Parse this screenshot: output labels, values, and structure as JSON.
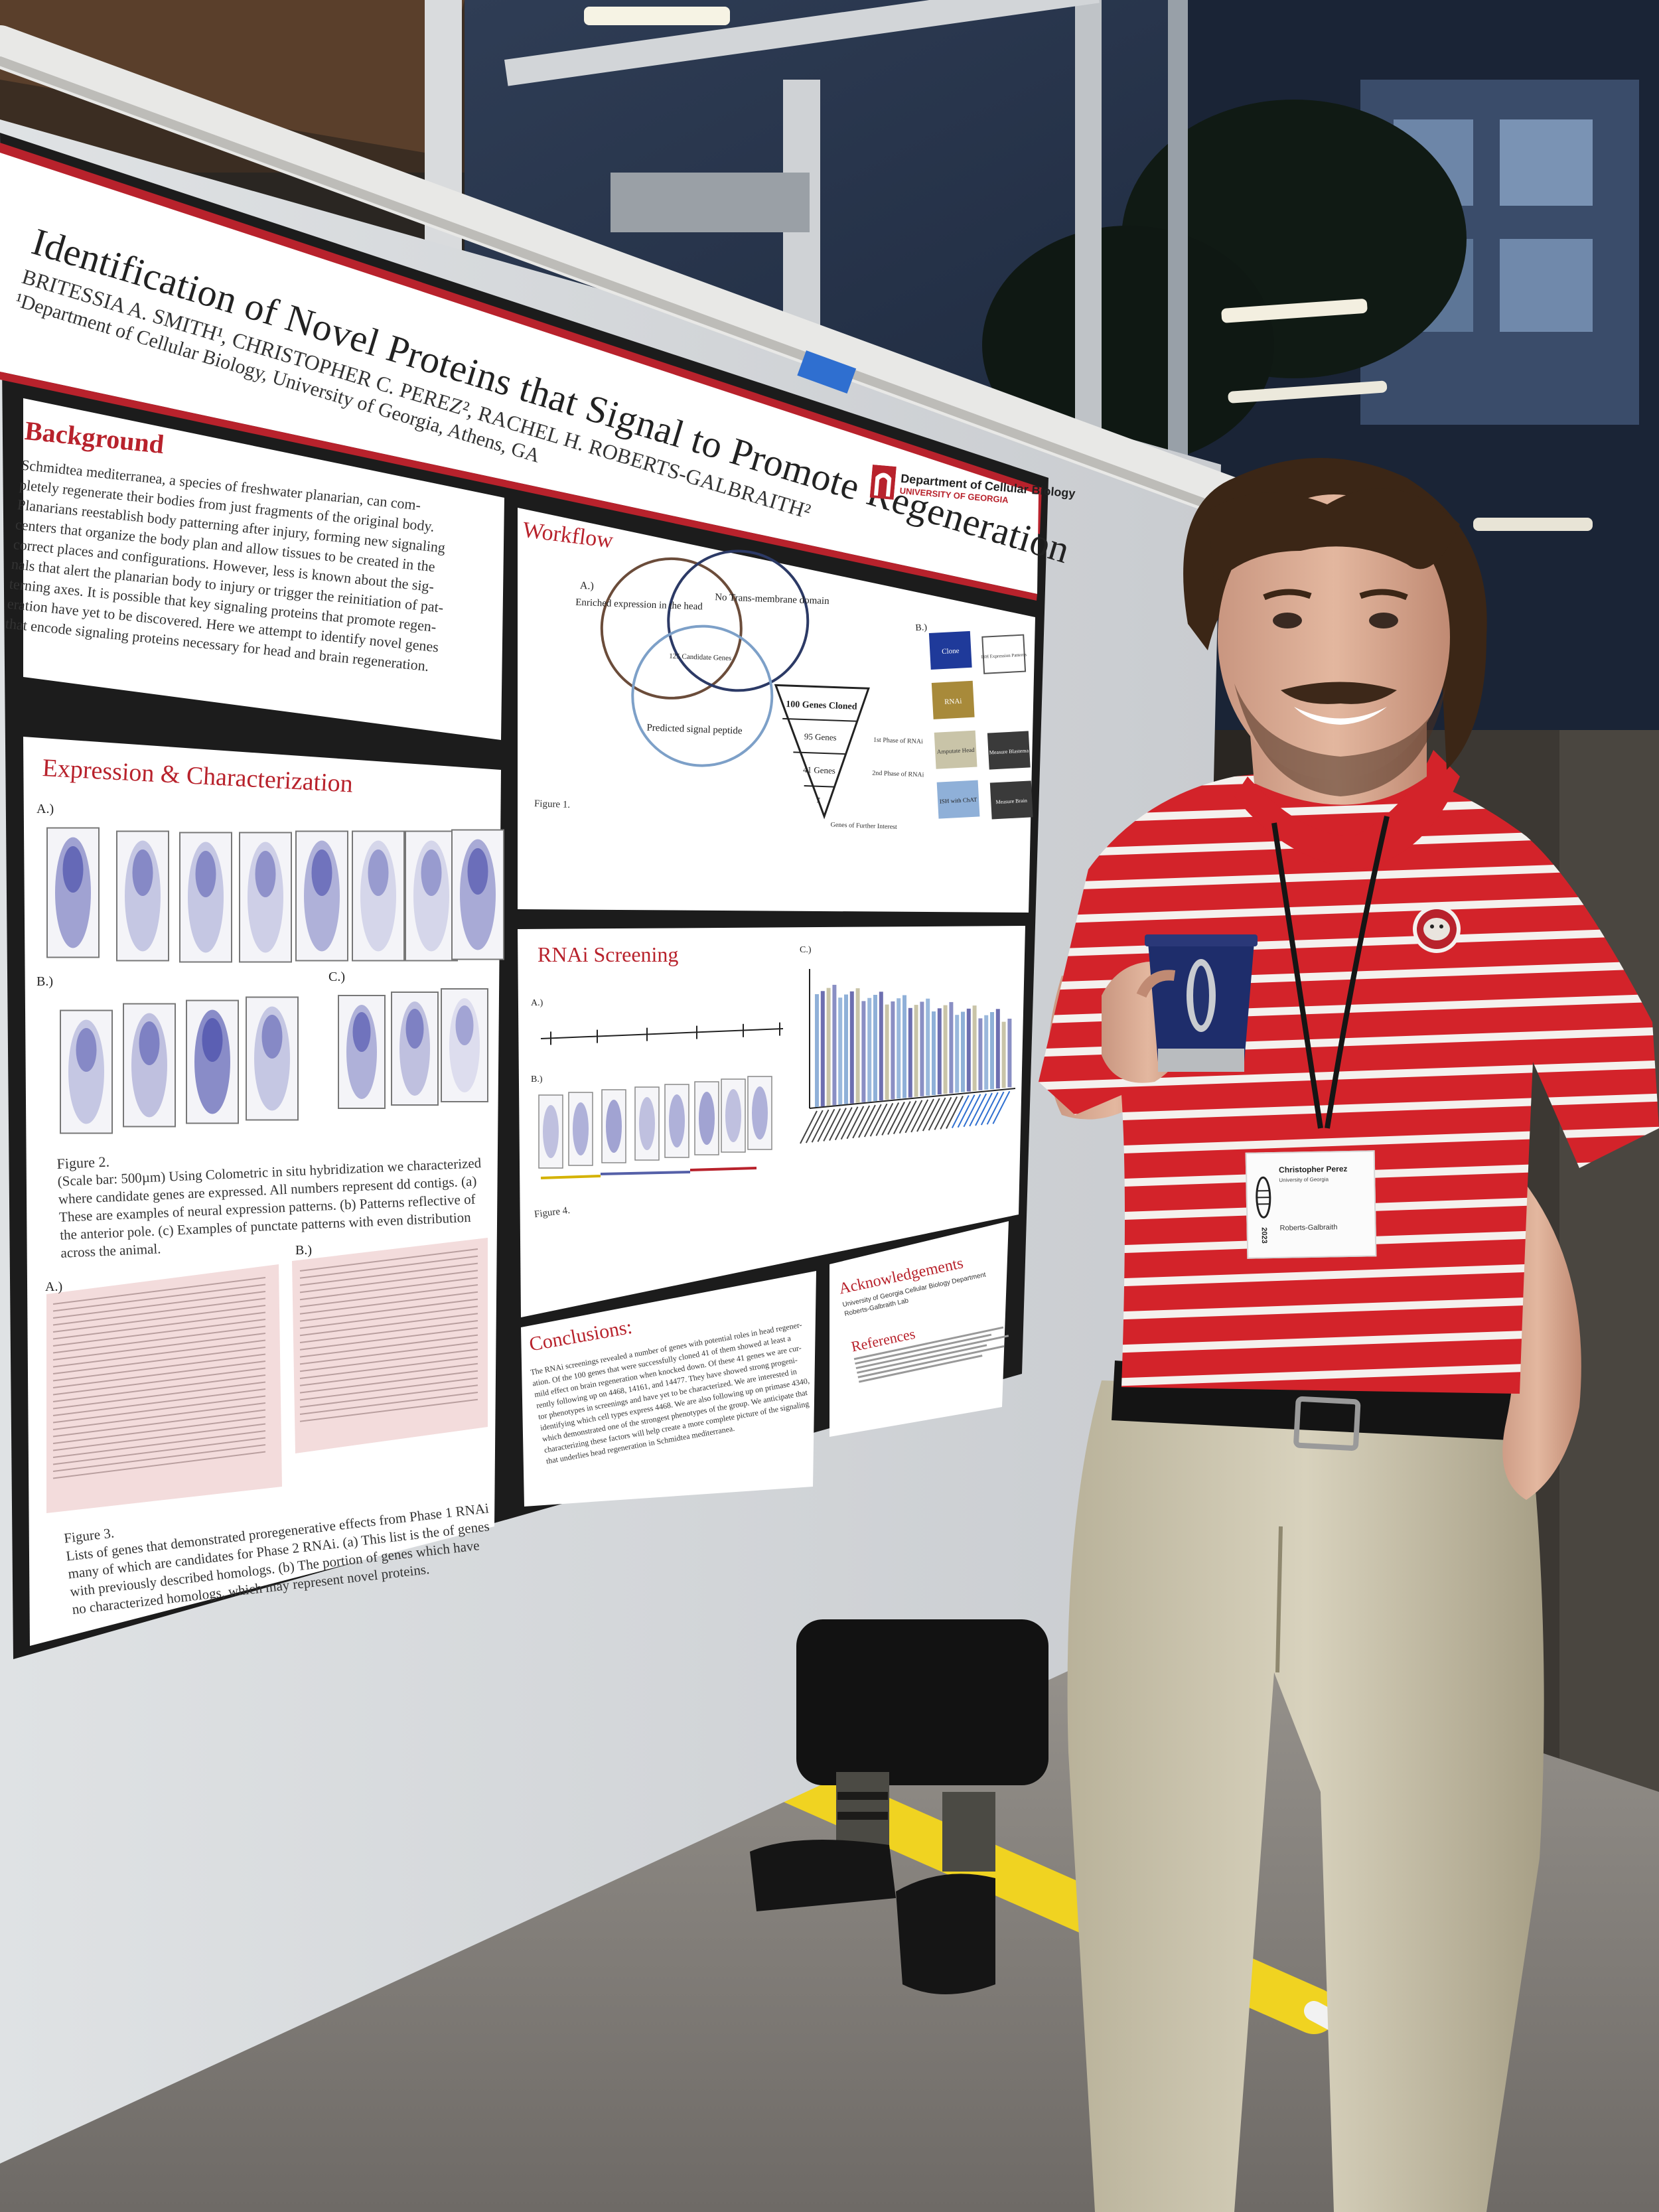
{
  "poster": {
    "title": "Identification of Novel Proteins that Signal to Promote Regeneration",
    "authors": "BRITESSIA A. SMITH¹, CHRISTOPHER C. PEREZ², RACHEL H. ROBERTS-GALBRAITH²",
    "affiliation": "¹Department of Cellular Biology, University of Georgia, Athens, GA",
    "department": "Department of Cellular Biology",
    "university": "UNIVERSITY OF GEORGIA",
    "sections": {
      "background": {
        "heading": "Background",
        "lines": [
          "Schmidtea mediterranea, a species of freshwater planarian, can com-",
          "pletely regenerate their bodies from just fragments of the original body.",
          "Planarians reestablish body patterning after injury, forming new signaling",
          "centers that organize the body plan and allow tissues to be created in the",
          "correct places and configurations. However, less is known about the sig-",
          "nals that alert the planarian body to injury or trigger the reinitiation of pat-",
          "terning axes. It is possible that key signaling proteins that promote regen-",
          "eration have yet to be discovered. Here we attempt to identify novel genes",
          "that encode signaling proteins necessary for head and brain regeneration."
        ]
      },
      "expression": {
        "heading": "Expression & Characterization",
        "caption_lines": [
          "Figure 2.",
          "(Scale bar: 500µm) Using Colometric in situ hybridization we characterized",
          "where candidate genes are expressed. All numbers represent dd contigs. (a)",
          "These are examples of neural expression patterns. (b) Patterns reflective of",
          "the anterior pole. (c) Examples of punctate patterns with even distribution",
          "across the animal."
        ]
      },
      "workflow": {
        "heading": "Workflow",
        "venn": [
          "Enriched expression in the head",
          "No Trans-membrane domain",
          "Predicted signal peptide",
          "125 Candidate Genes"
        ],
        "funnel": [
          "100 Genes Cloned",
          "95 Genes",
          "41 Genes",
          "7",
          "1st Phase of RNAi",
          "2nd Phase of RNAi",
          "Genes of Further Interest"
        ],
        "flow": [
          "Clone",
          "ISH Expression Patterns",
          "RNAi",
          "Amputate Head",
          "Measure Blastema",
          "ISH with ChAT",
          "Measure Brain"
        ],
        "caption_lines": [
          "Figure 1."
        ]
      },
      "rnai": {
        "heading": "RNAi Screening",
        "caption_lines": [
          "Figure 4."
        ]
      },
      "conclusions": {
        "heading": "Conclusions:",
        "lines": [
          "The RNAi screenings revealed a number of genes with potential roles in head regener-",
          "ation. Of the 100 genes that were successfully cloned 41 of them showed at least a",
          "mild effect on brain regeneration when knocked down. Of these 41 genes we are cur-",
          "rently following up on 4468, 14161, and 14477. They have showed strong progeni-",
          "tor phenotypes in screenings and have yet to be characterized. We are interested in",
          "identifying which cell types express 4468. We are also following up on primase 4340,",
          "which demonstrated one of the strongest phenotypes of the group. We anticipate that",
          "characterizing these factors will help create a more complete picture of the signaling",
          "that underlies head regeneration in Schmidtea mediterranea."
        ]
      },
      "genes": {
        "caption_lines": [
          "Figure 3.",
          "Lists of genes that demonstrated proregenerative effects from Phase 1 RNAi",
          "many of which are candidates for Phase 2 RNAi. (a) This list is the of genes",
          "with previously described homologs. (b) The portion of genes which have",
          "no characterized homologs, which may represent novel proteins."
        ]
      },
      "acknowledgements": {
        "heading": "Acknowledgements",
        "lines": [
          "University of Georgia Cellular Biology Department",
          "Roberts-Galbraith Lab"
        ]
      },
      "references": {
        "heading": "References"
      }
    }
  },
  "badge": {
    "name": "Christopher Perez",
    "institution": "University of Georgia",
    "lab": "Roberts-Galbraith",
    "year": "2023"
  },
  "colors": {
    "poster_red": "#b8222c",
    "poster_frame": "#1c1c1c",
    "shirt_red": "#d3232a",
    "stain_purple": "#5b5fb3",
    "wall": "#e6e8ea"
  },
  "icons": [
    "uga-arch-logo",
    "bulldog-logo",
    "tumbler-cup"
  ]
}
